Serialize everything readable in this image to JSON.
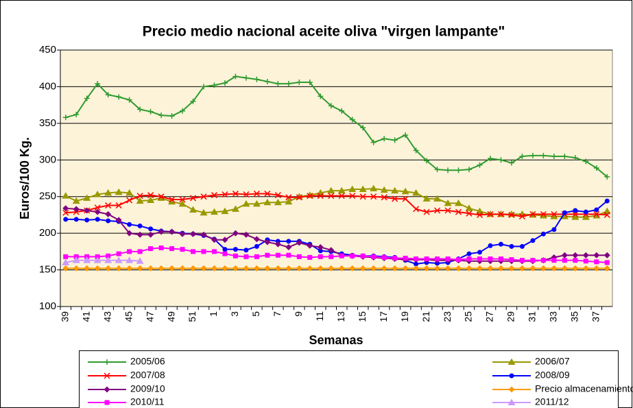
{
  "chart_data": {
    "type": "line",
    "title": "Precio medio nacional  aceite oliva \"virgen lampante\"",
    "x_label": "Semanas",
    "y_label": "Euros/100 Kg.",
    "categories": [
      "39",
      null,
      "41",
      null,
      "43",
      null,
      "45",
      null,
      "47",
      null,
      "49",
      null,
      "51",
      null,
      "1",
      null,
      "3",
      null,
      "5",
      null,
      "7",
      null,
      "9",
      null,
      "11",
      null,
      "13",
      null,
      "15",
      null,
      "17",
      null,
      "19",
      null,
      "21",
      null,
      "23",
      null,
      "25",
      null,
      "27",
      null,
      "29",
      null,
      "31",
      null,
      "33",
      null,
      "35",
      null,
      "37",
      null
    ],
    "ylim": [
      100,
      450
    ],
    "yticks": [
      100,
      150,
      200,
      250,
      300,
      350,
      400,
      450
    ],
    "grid": true,
    "series": [
      {
        "name": "2005/06",
        "color": "#2e9a2e",
        "marker": "plus",
        "values": [
          358,
          362,
          384,
          404,
          389,
          386,
          382,
          369,
          366,
          361,
          360,
          367,
          380,
          400,
          402,
          405,
          414,
          412,
          410,
          407,
          404,
          404,
          406,
          406,
          387,
          374,
          367,
          355,
          344,
          324,
          329,
          327,
          334,
          313,
          299,
          287,
          286,
          286,
          287,
          293,
          302,
          300,
          296,
          305,
          306,
          306,
          305,
          305,
          303,
          298,
          289,
          277
        ]
      },
      {
        "name": "2006/07",
        "color": "#999900",
        "marker": "triangle",
        "values": [
          251,
          244,
          248,
          253,
          255,
          256,
          255,
          244,
          245,
          248,
          243,
          240,
          232,
          228,
          229,
          230,
          233,
          240,
          240,
          242,
          242,
          243,
          250,
          252,
          255,
          258,
          258,
          260,
          260,
          261,
          259,
          258,
          257,
          255,
          247,
          247,
          241,
          241,
          234,
          230,
          226,
          226,
          226,
          226,
          225,
          224,
          223,
          223,
          222,
          222,
          224,
          230
        ]
      },
      {
        "name": "2007/08",
        "color": "#ff0000",
        "marker": "x",
        "values": [
          228,
          229,
          231,
          235,
          238,
          238,
          245,
          251,
          252,
          250,
          246,
          246,
          248,
          250,
          252,
          253,
          254,
          253,
          254,
          254,
          252,
          249,
          249,
          251,
          251,
          251,
          251,
          251,
          250,
          250,
          249,
          247,
          247,
          233,
          229,
          231,
          231,
          229,
          227,
          225,
          226,
          226,
          225,
          223,
          226,
          226,
          226,
          226,
          226,
          226,
          226,
          225
        ]
      },
      {
        "name": "2008/09",
        "color": "#0000ff",
        "marker": "circle",
        "values": [
          219,
          219,
          218,
          219,
          217,
          216,
          212,
          210,
          206,
          203,
          202,
          200,
          199,
          197,
          192,
          178,
          178,
          177,
          182,
          191,
          189,
          189,
          189,
          185,
          176,
          175,
          172,
          170,
          169,
          169,
          168,
          167,
          163,
          158,
          160,
          159,
          160,
          165,
          172,
          174,
          183,
          185,
          182,
          182,
          190,
          199,
          205,
          228,
          231,
          229,
          232,
          244
        ]
      },
      {
        "name": "2009/10",
        "color": "#800080",
        "marker": "diamond",
        "values": [
          234,
          233,
          231,
          229,
          226,
          218,
          200,
          198,
          198,
          202,
          202,
          199,
          199,
          198,
          191,
          191,
          200,
          198,
          192,
          188,
          185,
          181,
          187,
          183,
          181,
          177,
          170,
          169,
          168,
          167,
          166,
          165,
          164,
          164,
          164,
          163,
          163,
          163,
          162,
          162,
          162,
          162,
          162,
          162,
          162,
          163,
          167,
          170,
          170,
          170,
          170,
          170
        ]
      },
      {
        "name": "Precio almacenamiento privado",
        "color": "#ff9900",
        "marker": "diamond",
        "values": [
          152,
          152,
          152,
          152,
          152,
          152,
          152,
          152,
          152,
          152,
          152,
          152,
          152,
          152,
          152,
          152,
          152,
          152,
          152,
          152,
          152,
          152,
          152,
          152,
          152,
          152,
          152,
          152,
          152,
          152,
          152,
          152,
          152,
          152,
          152,
          152,
          152,
          152,
          152,
          152,
          152,
          152,
          152,
          152,
          152,
          152,
          152,
          152,
          152,
          152,
          152,
          152
        ]
      },
      {
        "name": "2010/11",
        "color": "#ff00ff",
        "marker": "square",
        "values": [
          168,
          168,
          168,
          168,
          169,
          172,
          175,
          175,
          179,
          180,
          179,
          178,
          175,
          175,
          175,
          172,
          169,
          168,
          168,
          170,
          170,
          170,
          168,
          167,
          168,
          168,
          169,
          169,
          169,
          168,
          167,
          166,
          166,
          165,
          165,
          165,
          165,
          164,
          165,
          165,
          165,
          165,
          164,
          163,
          163,
          163,
          163,
          163,
          163,
          162,
          161,
          160
        ]
      },
      {
        "name": "2011/12",
        "color": "#cc99ff",
        "marker": "triangle",
        "values": [
          160,
          163,
          163,
          163,
          163,
          163,
          163,
          162,
          null,
          null,
          null,
          null,
          null,
          null,
          null,
          null,
          null,
          null,
          null,
          null,
          null,
          null,
          null,
          null,
          null,
          null,
          null,
          null,
          null,
          null,
          null,
          null,
          null,
          null,
          null,
          null,
          null,
          null,
          null,
          null,
          null,
          null,
          null,
          null,
          null,
          null,
          null,
          null,
          null,
          null,
          null,
          null
        ]
      }
    ]
  }
}
